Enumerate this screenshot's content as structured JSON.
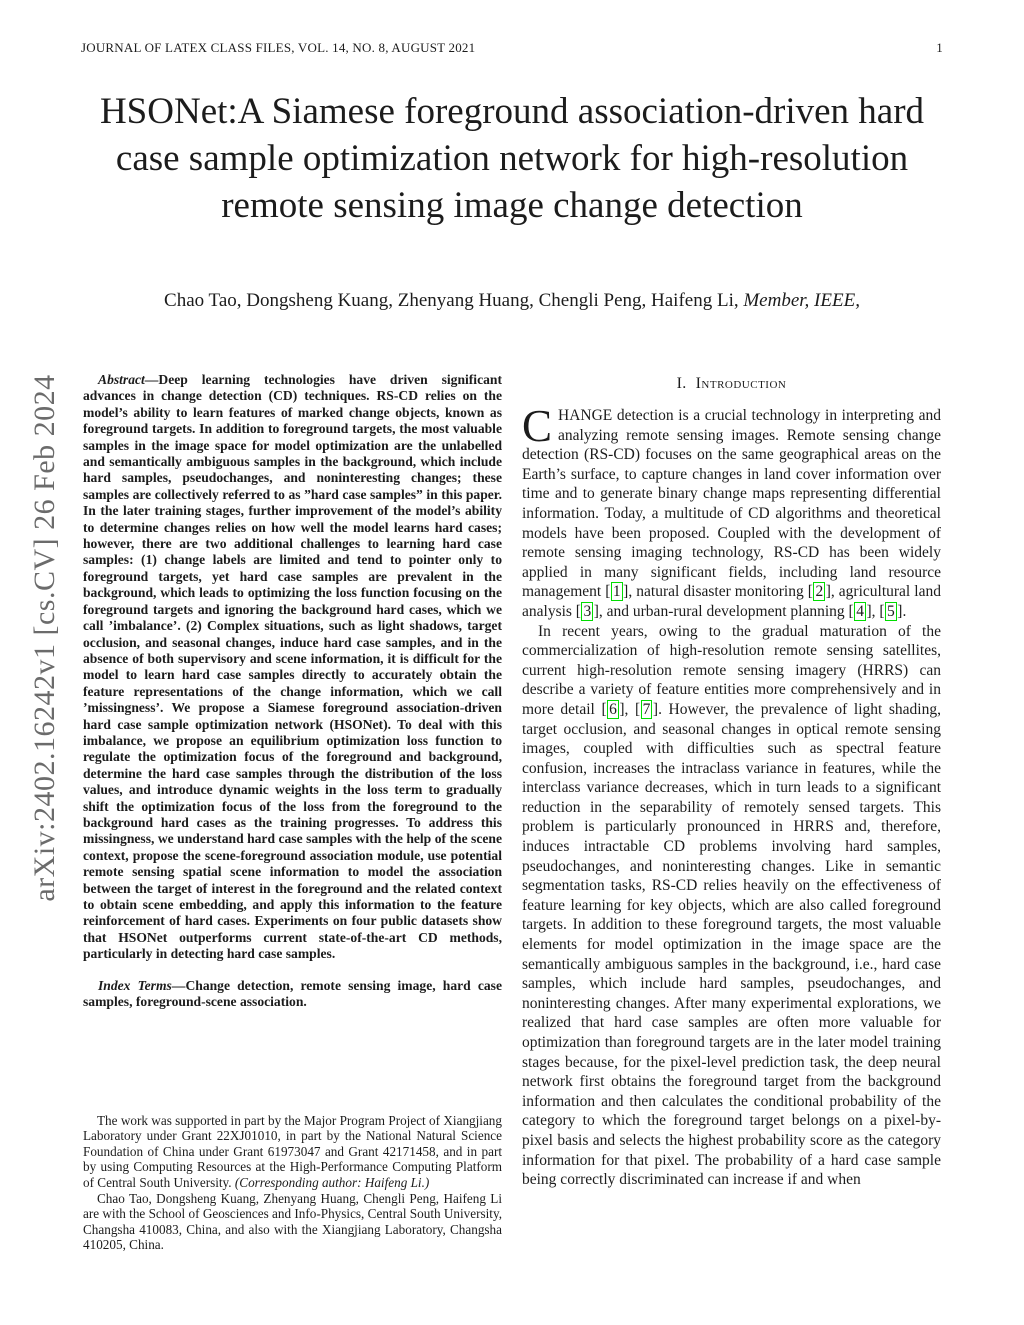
{
  "header": {
    "journal": "JOURNAL OF LATEX CLASS FILES, VOL. 14, NO. 8, AUGUST 2021",
    "page_number": "1"
  },
  "arxiv_stamp": {
    "text": "arXiv:2402.16242v1  [cs.CV]  26 Feb 2024"
  },
  "title": {
    "text": "HSONet:A Siamese foreground association-driven hard case sample optimization network for high-resolution remote sensing image change detection"
  },
  "authors": {
    "names": "Chao Tao, Dongsheng Kuang, Zhenyang Huang, Chengli Peng, Haifeng Li,",
    "membership": " Member, IEEE,"
  },
  "abstract": {
    "label": "Abstract—",
    "text": "Deep learning technologies have driven significant advances in change detection (CD) techniques. RS-CD relies on the model’s ability to learn features of marked change objects, known as foreground targets. In addition to foreground targets, the most valuable samples in the image space for model optimization are the unlabelled and semantically ambiguous samples in the background, which include hard samples, pseudochanges, and noninteresting changes; these samples are collectively referred to as ”hard case samples” in this paper. In the later training stages, further improvement of the model’s ability to determine changes relies on how well the model learns hard cases; however, there are two additional challenges to learning hard case samples: (1) change labels are limited and tend to pointer only to foreground targets, yet hard case samples are prevalent in the background, which leads to optimizing the loss function focusing on the foreground targets and ignoring the background hard cases, which we call ’imbalance’. (2) Complex situations, such as light shadows, target occlusion, and seasonal changes, induce hard case samples, and in the absence of both supervisory and scene information, it is difficult for the model to learn hard case samples directly to accurately obtain the feature representations of the change information, which we call ’missingness’. We propose a Siamese foreground association-driven hard case sample optimization network (HSONet). To deal with this imbalance, we propose an equilibrium optimization loss function to regulate the optimization focus of the foreground and background, determine the hard case samples through the distribution of the loss values, and introduce dynamic weights in the loss term to gradually shift the optimization focus of the loss from the foreground to the background hard cases as the training progresses. To address this missingness, we understand hard case samples with the help of the scene context, propose the scene-foreground association module, use potential remote sensing spatial scene information to model the association between the target of interest in the foreground and the related context to obtain scene embedding, and apply this information to the feature reinforcement of hard cases. Experiments on four public datasets show that HSONet outperforms current state-of-the-art CD methods, particularly in detecting hard case samples."
  },
  "index_terms": {
    "label": "Index Terms—",
    "text": "Change detection, remote sensing image, hard case samples, foreground-scene association."
  },
  "footnotes": {
    "para1_text": "The work was supported in part by the Major Program Project of Xiangjiang Laboratory under Grant 22XJ01010, in part by the National Natural Science Foundation of China under Grant 61973047 and Grant 42171458, and in part by using Computing Resources at the High-Performance Computing Platform of Central South University. ",
    "para1_corresponding": "(Corresponding author: Haifeng Li.)",
    "para2_text": "Chao Tao, Dongsheng Kuang, Zhenyang Huang, Chengli Peng, Haifeng Li are with the School of Geosciences and Info-Physics, Central South University, Changsha 410083, China, and also with the Xiangjiang Laboratory, Changsha 410205, China."
  },
  "introduction": {
    "heading_number": "I.",
    "heading_title": "Introduction",
    "dropcap": "C",
    "p1": {
      "s1": "HANGE detection is a crucial technology in interpreting and analyzing remote sensing images. Remote sensing change detection (RS-CD) focuses on the same geographical areas on the Earth’s surface, to capture changes in land cover information over time and to generate binary change maps representing differential information. Today, a multitude of CD algorithms and theoretical models have been proposed. Coupled with the development of remote sensing imaging technology, RS-CD has been widely applied in many significant fields, including land resource management [",
      "c1": "1",
      "s2": "], natural disaster monitoring [",
      "c2": "2",
      "s3": "], agricultural land analysis [",
      "c3": "3",
      "s4": "], and urban-rural development planning [",
      "c4": "4",
      "s5": "], [",
      "c5": "5",
      "s6": "]."
    },
    "p2": {
      "s1": "In recent years, owing to the gradual maturation of the commercialization of high-resolution remote sensing satellites, current high-resolution remote sensing imagery (HRRS) can describe a variety of feature entities more comprehensively and in more detail [",
      "c1": "6",
      "s2": "], [",
      "c2": "7",
      "s3": "]. However, the prevalence of light shading, target occlusion, and seasonal changes in optical remote sensing images, coupled with difficulties such as spectral feature confusion, increases the intraclass variance in features, while the interclass variance decreases, which in turn leads to a significant reduction in the separability of remotely sensed targets. This problem is particularly pronounced in HRRS and, therefore, induces intractable CD problems involving hard samples, pseudochanges, and noninteresting changes. Like in semantic segmentation tasks, RS-CD relies heavily on the effectiveness of feature learning for key objects, which are also called foreground targets. In addition to these foreground targets, the most valuable elements for model optimization in the image space are the semantically ambiguous samples in the background, i.e., hard case samples, which include hard samples, pseudochanges, and noninteresting changes. After many experimental explorations, we realized that hard case samples are often more valuable for optimization than foreground targets are in the later model training stages because, for the pixel-level prediction task, the deep neural network first obtains the foreground target from the background information and then calculates the conditional probability of the category to which the foreground target belongs on a pixel-by-pixel basis and selects the highest probability score as the category information for that pixel. The probability of a hard case sample being correctly discriminated can increase if and when"
    }
  },
  "colors": {
    "citation_green": "#00dd00",
    "stamp_gray": "#6b6b6b"
  }
}
